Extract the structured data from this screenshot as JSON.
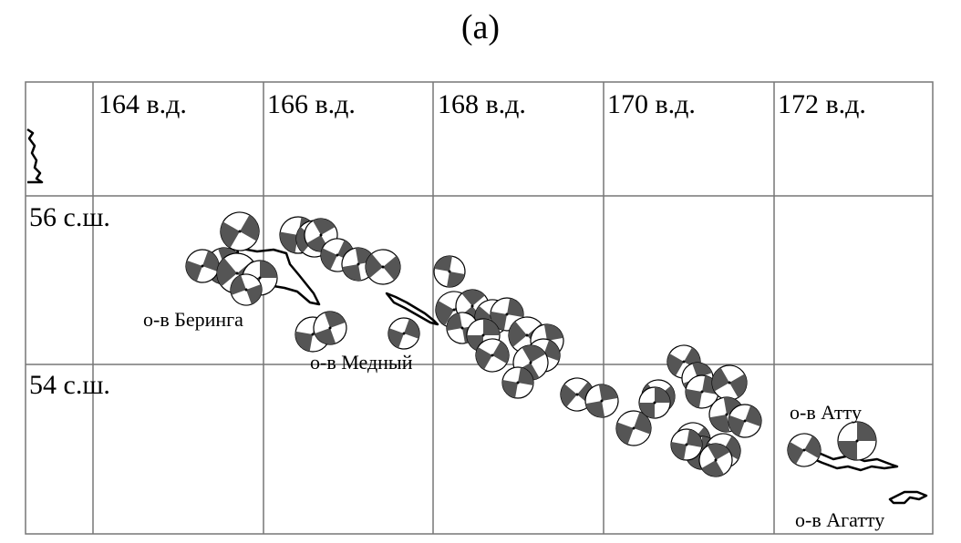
{
  "panel_label": "(a)",
  "longitude_labels": [
    "164 в.д.",
    "166 в.д.",
    "168 в.д.",
    "170 в.д.",
    "172 в.д."
  ],
  "latitude_labels": [
    "56 с.ш.",
    "54 с.ш."
  ],
  "island_labels": {
    "bering": "о-в Беринга",
    "medny": "о-в Медный",
    "attu": "о-в Атту",
    "agattu": "о-в Агатту"
  },
  "colors": {
    "ink": "#000000",
    "shade": "#555555",
    "grid": "#777777"
  },
  "mechanism_glyph": "beach-ball focal mechanism"
}
